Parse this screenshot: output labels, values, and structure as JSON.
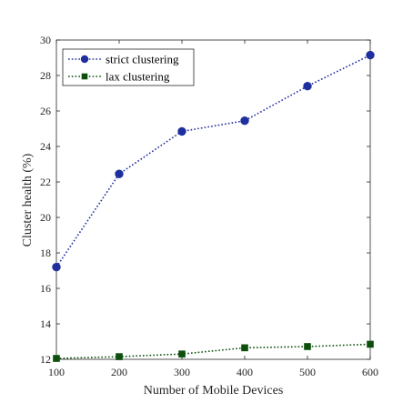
{
  "chart_data": {
    "type": "line",
    "title": "",
    "xlabel": "Number of Mobile Devices",
    "ylabel": "Cluster health (%)",
    "x": [
      100,
      200,
      300,
      400,
      500,
      600
    ],
    "xlim": [
      100,
      600
    ],
    "ylim": [
      12,
      30
    ],
    "xticks": [
      100,
      200,
      300,
      400,
      500,
      600
    ],
    "yticks": [
      12,
      14,
      16,
      18,
      20,
      22,
      24,
      26,
      28,
      30
    ],
    "grid": false,
    "legend_position": "top-left",
    "series": [
      {
        "name": "strict clustering",
        "values": [
          17.2,
          22.45,
          24.85,
          25.45,
          27.4,
          29.15
        ],
        "color": "#1f2f9e",
        "marker": "circle",
        "line_style": "dotted"
      },
      {
        "name": "lax clustering",
        "values": [
          12.05,
          12.15,
          12.3,
          12.65,
          12.72,
          12.85
        ],
        "color": "#0d4f0d",
        "marker": "square",
        "line_style": "dotted"
      }
    ]
  }
}
